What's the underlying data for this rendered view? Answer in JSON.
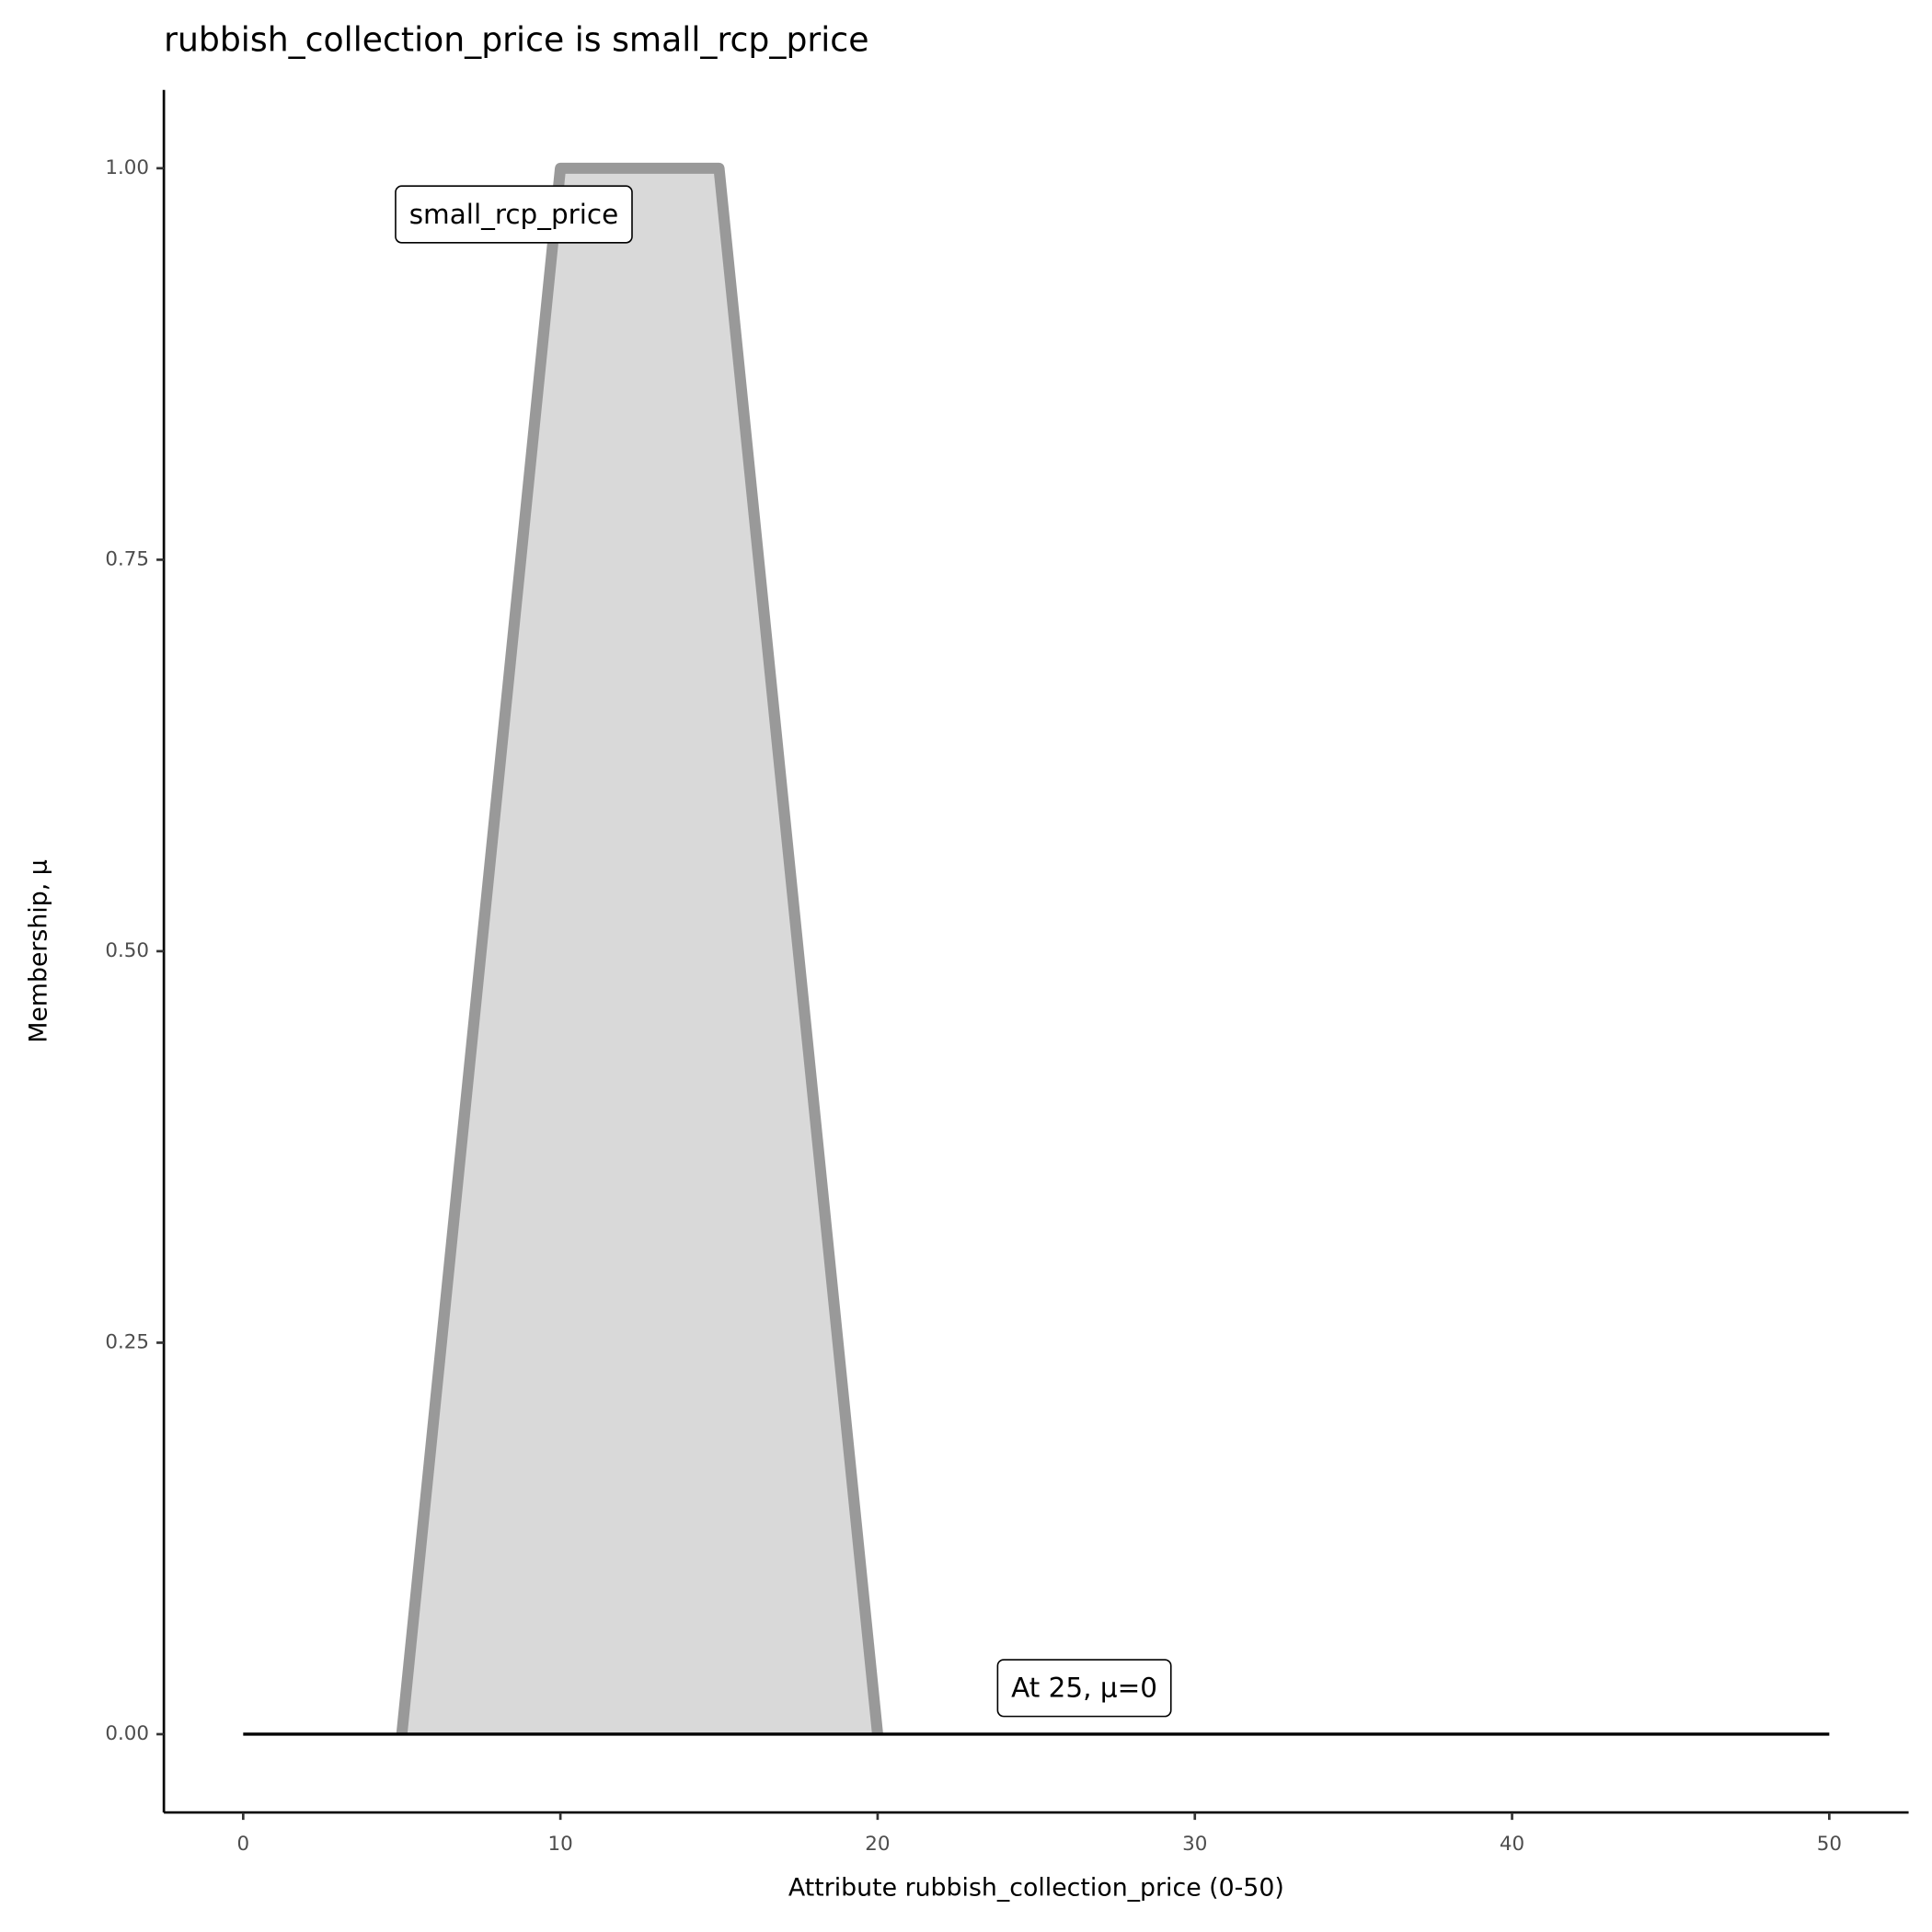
{
  "chart_data": {
    "type": "area",
    "title": "rubbish_collection_price is small_rcp_price",
    "x_label": "Attribute rubbish_collection_price (0-50)",
    "y_label": "Membership, μ",
    "xlim": [
      -2.5,
      52.5
    ],
    "ylim": [
      -0.05,
      1.05
    ],
    "xticks": [
      0,
      10,
      20,
      30,
      40,
      50
    ],
    "yticks": [
      {
        "value": 0,
        "label": "0.00"
      },
      {
        "value": 0.25,
        "label": "0.25"
      },
      {
        "value": 0.5,
        "label": "0.50"
      },
      {
        "value": 0.75,
        "label": "0.75"
      },
      {
        "value": 1,
        "label": "1.00"
      }
    ],
    "series": [
      {
        "name": "small_rcp_price",
        "x": [
          5,
          10,
          15,
          20
        ],
        "values": [
          0,
          1,
          1,
          0
        ],
        "color": "#999999",
        "fill": "#d9d9d9"
      }
    ],
    "line": {
      "x": [
        0,
        50
      ],
      "values": [
        0,
        0
      ],
      "color": "#000000"
    },
    "annotations": [
      {
        "text": "At 25, μ=0"
      }
    ]
  }
}
